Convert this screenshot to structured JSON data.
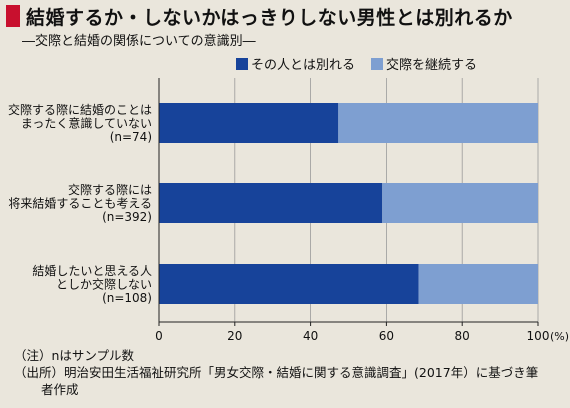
{
  "title": "結婚するか・しないかはっきりしない男性とは別れるか",
  "subtitle": "―交際と結婚の関係についての意識別―",
  "notes": [
    "（注）nはサンプル数",
    "（出所）明治安田生活福祉研究所「男女交際・結婚に関する意識調査」(2017年）に基づき筆",
    "者作成"
  ],
  "chart_data": {
    "type": "bar",
    "orientation": "horizontal",
    "stacked": true,
    "categories": [
      [
        "交際する際に結婚のことは",
        "まったく意識していない",
        "(n=74)"
      ],
      [
        "交際する際には",
        "将来結婚することも考える",
        "(n=392)"
      ],
      [
        "結婚したいと思える人",
        "としか交際しない",
        "(n=108)"
      ]
    ],
    "series": [
      {
        "name": "その人とは別れる",
        "color": "#17439a",
        "values": [
          47.3,
          58.9,
          68.5
        ]
      },
      {
        "name": "交際を継続する",
        "color": "#7e9fd1",
        "values": [
          52.7,
          41.1,
          31.5
        ]
      }
    ],
    "xlim": [
      0,
      100
    ],
    "xticks": [
      "0",
      "20",
      "40",
      "60",
      "80",
      "100"
    ],
    "x_unit": "(%)",
    "grid": true,
    "legend_position": "top"
  }
}
